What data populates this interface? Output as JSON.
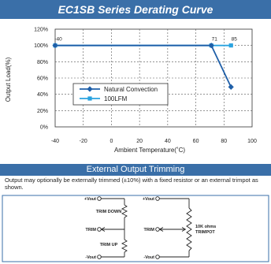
{
  "header": {
    "title": "EC1SB Series Derating Curve"
  },
  "chart_data": {
    "type": "line",
    "title": "EC1SB Series Derating Curve",
    "xlabel": "Ambient Temperature(˚C)",
    "ylabel": "Output Load(%)",
    "xlim": [
      -40,
      100
    ],
    "ylim": [
      0,
      120
    ],
    "x_ticks": [
      "-40",
      "-20",
      "0",
      "20",
      "40",
      "60",
      "80",
      "100"
    ],
    "y_ticks": [
      "0%",
      "20%",
      "40%",
      "60%",
      "80%",
      "100%",
      "120%"
    ],
    "grid": true,
    "legend": "center",
    "series": [
      {
        "name": "Natural Convection",
        "color": "#1f5fa8",
        "marker": "diamond",
        "points": [
          [
            -40,
            100
          ],
          [
            71,
            100
          ],
          [
            85,
            49
          ]
        ]
      },
      {
        "name": "100LFM",
        "color": "#29a3e0",
        "marker": "square",
        "points": [
          [
            -40,
            100
          ],
          [
            71,
            100
          ],
          [
            85,
            100
          ]
        ]
      }
    ],
    "annotations": [
      {
        "text": "-40",
        "x": -40,
        "y": 100
      },
      {
        "text": "71",
        "x": 71,
        "y": 100
      },
      {
        "text": "85",
        "x": 85,
        "y": 100
      }
    ]
  },
  "trimming": {
    "title": "External Output Trimming",
    "note": "Output may optionally be externally trimmed (±10%) with a fixed resistor or an external trimpot as shown.",
    "left": {
      "vout_plus": "+Vout",
      "trim_down": "TRIM DOWN",
      "trim": "TRIM",
      "trim_up": "TRIM UP",
      "vout_minus": "-Vout"
    },
    "right": {
      "vout_plus": "+Vout",
      "trim": "TRIM",
      "vout_minus": "-Vout",
      "pot_label_1": "10K ohms",
      "pot_label_2": "TRIMPOT"
    }
  }
}
